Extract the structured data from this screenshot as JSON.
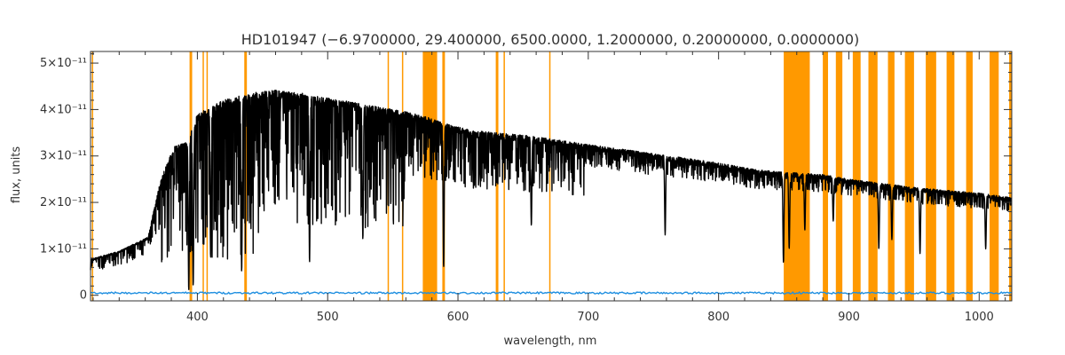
{
  "chart_data": {
    "type": "line",
    "title": "HD101947    (−6.9700000, 29.400000, 6500.0000, 1.2000000, 0.20000000, 0.0000000)",
    "xlabel": "wavelength, nm",
    "ylabel": "flux, units",
    "xlim": [
      318,
      1025
    ],
    "ylim": [
      -1.2e-12,
      5.25e-11
    ],
    "x_ticks": [
      {
        "value": 400,
        "label": "400"
      },
      {
        "value": 500,
        "label": "500"
      },
      {
        "value": 600,
        "label": "600"
      },
      {
        "value": 700,
        "label": "700"
      },
      {
        "value": 800,
        "label": "800"
      },
      {
        "value": 900,
        "label": "900"
      },
      {
        "value": 1000,
        "label": "1000"
      }
    ],
    "y_ticks": [
      {
        "value": 0,
        "label": "0"
      },
      {
        "value": 1e-11,
        "label": "1×10⁻¹¹"
      },
      {
        "value": 2e-11,
        "label": "2×10⁻¹¹"
      },
      {
        "value": 3e-11,
        "label": "3×10⁻¹¹"
      },
      {
        "value": 4e-11,
        "label": "4×10⁻¹¹"
      },
      {
        "value": 5e-11,
        "label": "5×10⁻¹¹"
      }
    ],
    "grid": false,
    "colors": {
      "flux": "#000000",
      "error": "#1f8fe0",
      "mask": "#ff9900",
      "axes": "#333333"
    },
    "series": [
      {
        "role": "flux",
        "continuum": [
          [
            318,
            7.8e-12
          ],
          [
            340,
            9.5e-12
          ],
          [
            362,
            1.25e-11
          ],
          [
            372,
            2.5e-11
          ],
          [
            382,
            3.2e-11
          ],
          [
            392,
            3.3e-11
          ],
          [
            400,
            3.9e-11
          ],
          [
            420,
            4.2e-11
          ],
          [
            440,
            4.35e-11
          ],
          [
            460,
            4.42e-11
          ],
          [
            480,
            4.35e-11
          ],
          [
            500,
            4.25e-11
          ],
          [
            520,
            4.15e-11
          ],
          [
            540,
            4.05e-11
          ],
          [
            560,
            3.95e-11
          ],
          [
            575,
            3.85e-11
          ],
          [
            590,
            3.7e-11
          ],
          [
            610,
            3.55e-11
          ],
          [
            650,
            3.45e-11
          ],
          [
            700,
            3.25e-11
          ],
          [
            750,
            3.05e-11
          ],
          [
            800,
            2.85e-11
          ],
          [
            830,
            2.7e-11
          ],
          [
            850,
            2.65e-11
          ],
          [
            880,
            2.6e-11
          ],
          [
            900,
            2.5e-11
          ],
          [
            950,
            2.32e-11
          ],
          [
            1000,
            2.2e-11
          ],
          [
            1025,
            2.1e-11
          ]
        ],
        "absorption_lines": [
          {
            "x": 393.4,
            "min": 1e-12
          },
          {
            "x": 396.8,
            "min": 2e-12
          },
          {
            "x": 410.2,
            "min": 8e-12
          },
          {
            "x": 434.0,
            "min": 5e-12
          },
          {
            "x": 486.1,
            "min": 7e-12
          },
          {
            "x": 527.0,
            "min": 1.2e-11
          },
          {
            "x": 589.0,
            "min": 6e-12
          },
          {
            "x": 656.3,
            "min": 1.5e-11
          },
          {
            "x": 759.0,
            "min": 1.3e-11
          },
          {
            "x": 849.8,
            "min": 7e-12
          },
          {
            "x": 854.2,
            "min": 1e-11
          },
          {
            "x": 866.2,
            "min": 1.4e-11
          },
          {
            "x": 888.0,
            "min": 1.6e-11
          },
          {
            "x": 923.0,
            "min": 1e-11
          },
          {
            "x": 933.0,
            "min": 1.2e-11
          },
          {
            "x": 954.6,
            "min": 9e-12
          },
          {
            "x": 1005.0,
            "min": 1e-11
          }
        ]
      },
      {
        "role": "error",
        "level": 5e-13
      }
    ],
    "masked_regions": [
      [
        319,
        320
      ],
      [
        394,
        396
      ],
      [
        404,
        405
      ],
      [
        407,
        408
      ],
      [
        436,
        438
      ],
      [
        546,
        547
      ],
      [
        557,
        558
      ],
      [
        573,
        584
      ],
      [
        588,
        590
      ],
      [
        629,
        631
      ],
      [
        635,
        636
      ],
      [
        670,
        671
      ],
      [
        850,
        870
      ],
      [
        880,
        884
      ],
      [
        890,
        895
      ],
      [
        903,
        909
      ],
      [
        915,
        922
      ],
      [
        930,
        935
      ],
      [
        943,
        950
      ],
      [
        959,
        967
      ],
      [
        975,
        981
      ],
      [
        990,
        995
      ],
      [
        1008,
        1015
      ],
      [
        1023,
        1025
      ]
    ]
  }
}
